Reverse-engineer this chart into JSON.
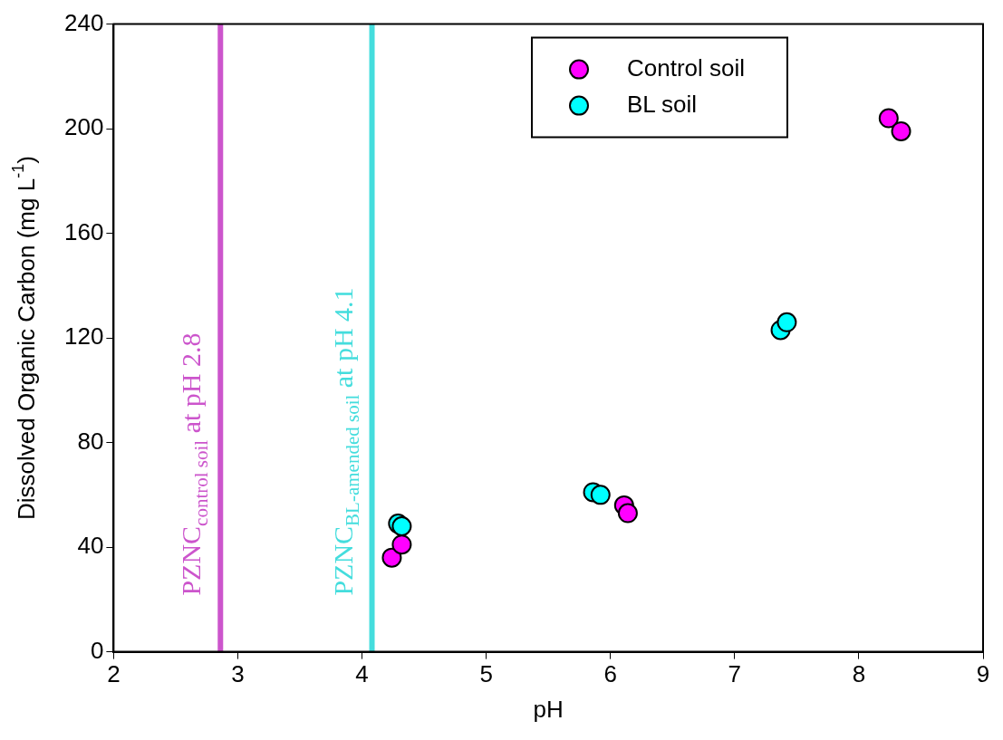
{
  "chart_data": {
    "type": "scatter",
    "xlabel": "pH",
    "ylabel": "Dissolved Organic Carbon (mg L$^{-1}$)",
    "xlim": [
      2,
      9
    ],
    "xticks": [
      2,
      3,
      4,
      5,
      6,
      7,
      8,
      9
    ],
    "ylim": [
      0,
      240
    ],
    "yticks": [
      0,
      40,
      80,
      120,
      160,
      200,
      240
    ],
    "grid": false,
    "legend": "top right",
    "marker": "circle",
    "series": [
      {
        "name": "Control soil",
        "color": "#ff00ff",
        "x": [
          8.24,
          8.34,
          4.24,
          4.32,
          6.11,
          6.14
        ],
        "values": [
          204,
          199,
          36,
          41,
          56,
          53
        ]
      },
      {
        "name": "BL soil",
        "color": "#00ffff",
        "x": [
          4.29,
          4.32,
          7.37,
          7.42,
          5.86,
          5.92
        ],
        "values": [
          49,
          48,
          123,
          126,
          61,
          60
        ]
      }
    ],
    "ref_lines": [
      {
        "axis": "x",
        "value": 2.86,
        "label": "PZNC$_{control soil}$ at pH 2.8",
        "color": "#cc55cc"
      },
      {
        "axis": "x",
        "value": 4.08,
        "label": "PZNC$_{BL-amended soil}$ at pH 4.1",
        "color": "#44dddd"
      }
    ]
  }
}
